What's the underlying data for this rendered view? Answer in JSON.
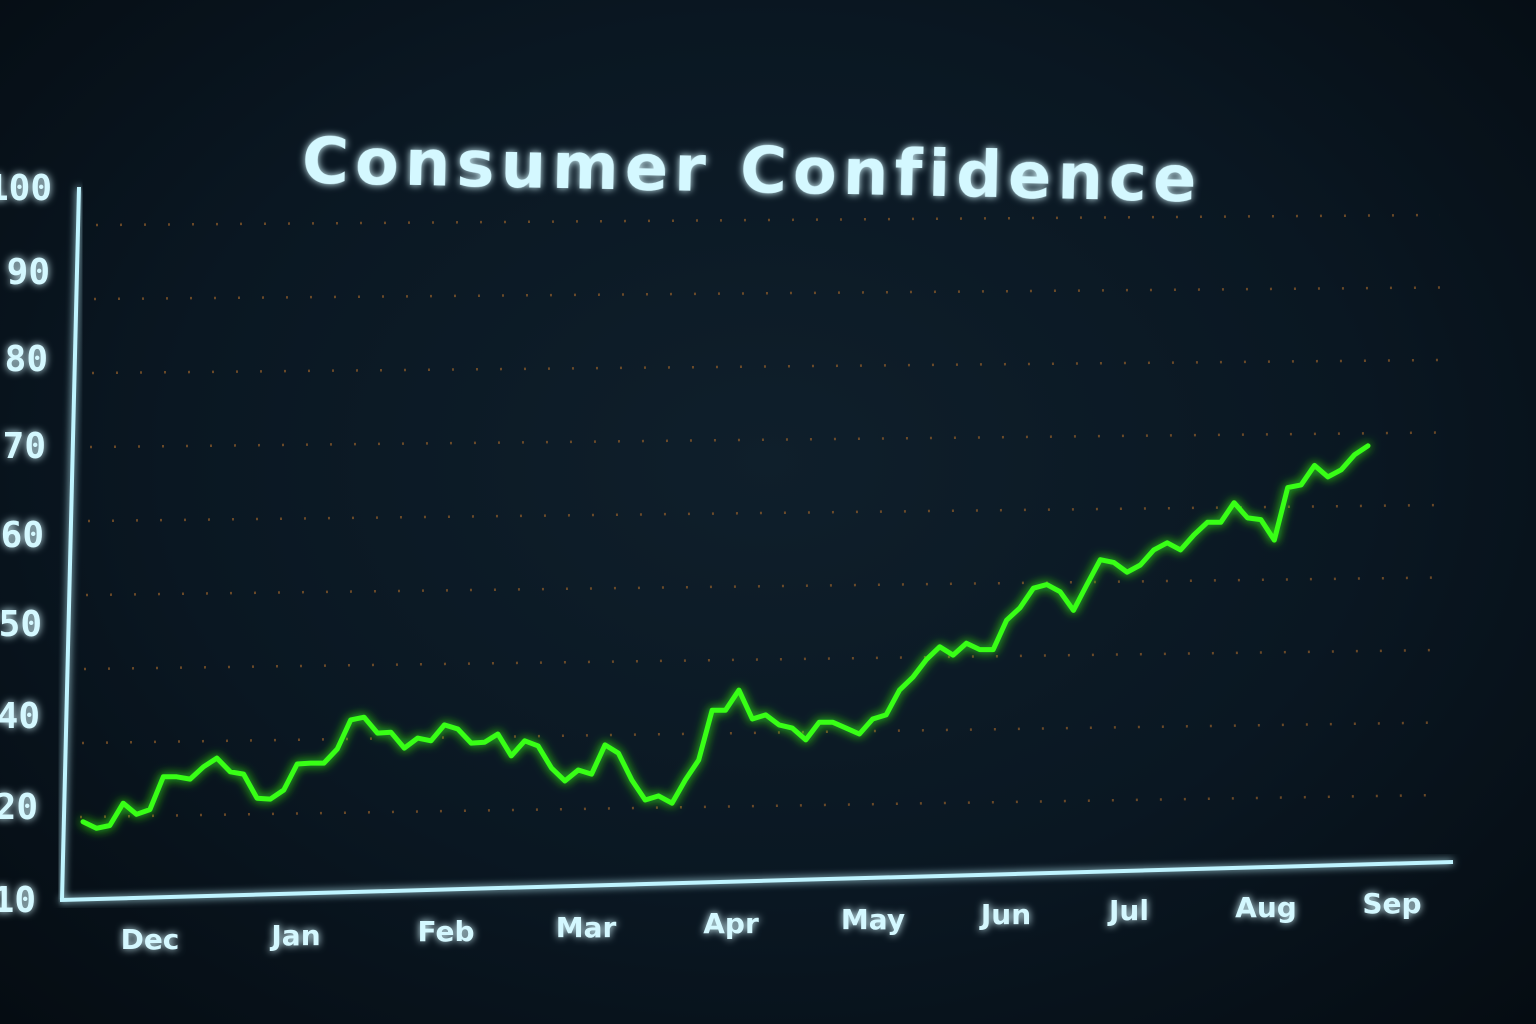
{
  "chart_data": {
    "type": "line",
    "title": "Consumer Confidence",
    "xlabel": "",
    "ylabel": "",
    "x_tick_labels": [
      "Dec",
      "Jan",
      "Feb",
      "Mar",
      "Apr",
      "May",
      "Jun",
      "Jul",
      "Aug",
      "Sep"
    ],
    "y_tick_labels": [
      "100",
      "90",
      "80",
      "70",
      "60",
      "50",
      "40",
      "20",
      "10"
    ],
    "y_tick_values": [
      100,
      90,
      80,
      70,
      60,
      50,
      40,
      20,
      10
    ],
    "ylim": [
      10,
      100
    ],
    "grid": true,
    "legend": "none",
    "colors": {
      "line": "#39ff14",
      "axis": "#bff4ff",
      "text": "#d4f8ff",
      "grid": "#8a5a2a",
      "background": "#0a1722"
    },
    "series": [
      {
        "values": [
          18.2,
          17.5,
          17.8,
          20.4,
          19.0,
          19.5,
          26.2,
          26.2,
          25.7,
          28.4,
          30.3,
          27.3,
          26.8,
          21.5,
          21.3,
          23.3,
          29.0,
          29.2,
          29.2,
          32.3,
          38.7,
          39.3,
          35.8,
          36.0,
          32.5,
          34.7,
          34.1,
          37.6,
          36.7,
          33.6,
          33.8,
          35.6,
          30.8,
          34.1,
          33.0,
          28.1,
          25.3,
          27.7,
          26.8,
          33.2,
          31.4,
          25.5,
          21.1,
          22.0,
          20.4,
          25.5,
          29.9,
          40.4,
          40.4,
          42.6,
          38.9,
          39.8,
          37.6,
          36.9,
          34.3,
          38.2,
          38.2,
          36.9,
          35.6,
          38.9,
          39.8,
          42.6,
          44.0,
          45.9,
          47.3,
          46.4,
          47.7,
          47.0,
          47.0,
          50.2,
          51.6,
          53.8,
          54.2,
          53.4,
          51.3,
          54.2,
          57.0,
          56.7,
          55.6,
          56.4,
          58.1,
          58.9,
          58.1,
          59.8,
          61.2,
          61.2,
          63.4,
          61.7,
          61.5,
          59.2,
          65.1,
          65.4,
          67.6,
          66.3,
          67.1,
          68.8,
          69.8
        ]
      }
    ]
  }
}
